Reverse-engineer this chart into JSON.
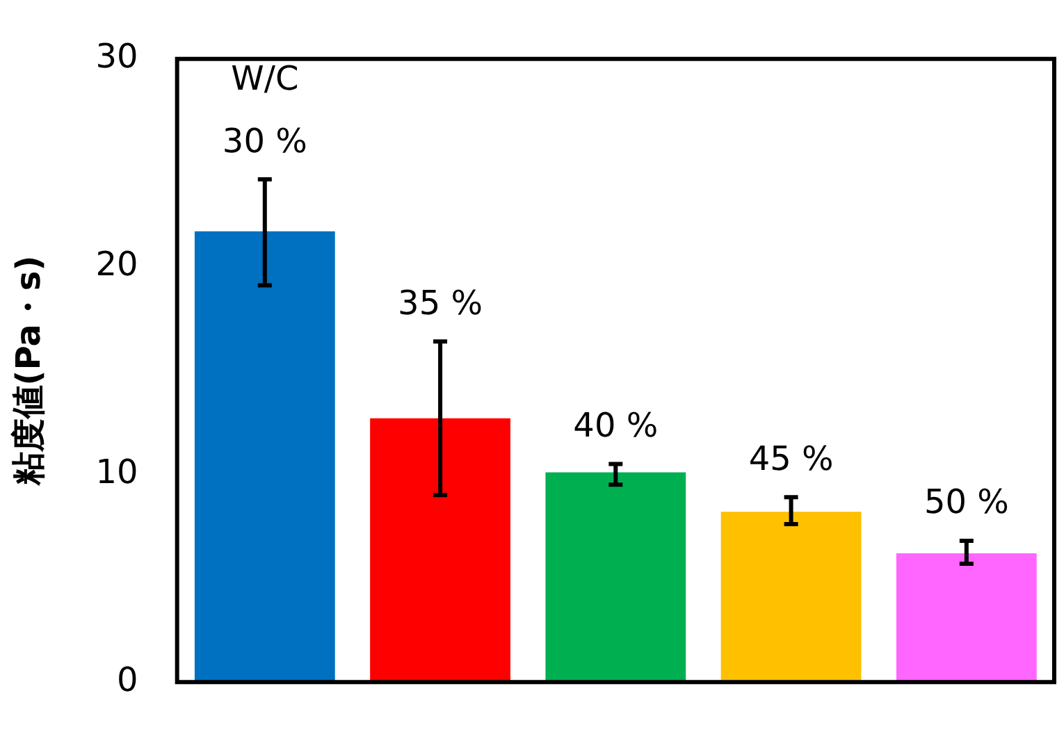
{
  "chart_data": {
    "type": "bar",
    "ylabel": "粘度値(Pa・s)",
    "categories": [
      null,
      null,
      null,
      null,
      null
    ],
    "values": [
      21.7,
      12.7,
      10.1,
      8.2,
      6.2
    ],
    "colors": [
      "#0070c0",
      "#ff0000",
      "#00b050",
      "#ffc000",
      "#ff66ff"
    ],
    "errors": [
      [
        19.1,
        24.2
      ],
      [
        9.0,
        16.4
      ],
      [
        9.5,
        10.5
      ],
      [
        7.6,
        8.9
      ],
      [
        5.7,
        6.8
      ]
    ],
    "ylim": [
      0,
      30
    ],
    "yticks": [
      0,
      10,
      20,
      30
    ],
    "grid": false,
    "legend": false,
    "annotations": [
      "W/C",
      "30 %",
      "35 %",
      "40 %",
      "45 %",
      "50 %"
    ]
  }
}
